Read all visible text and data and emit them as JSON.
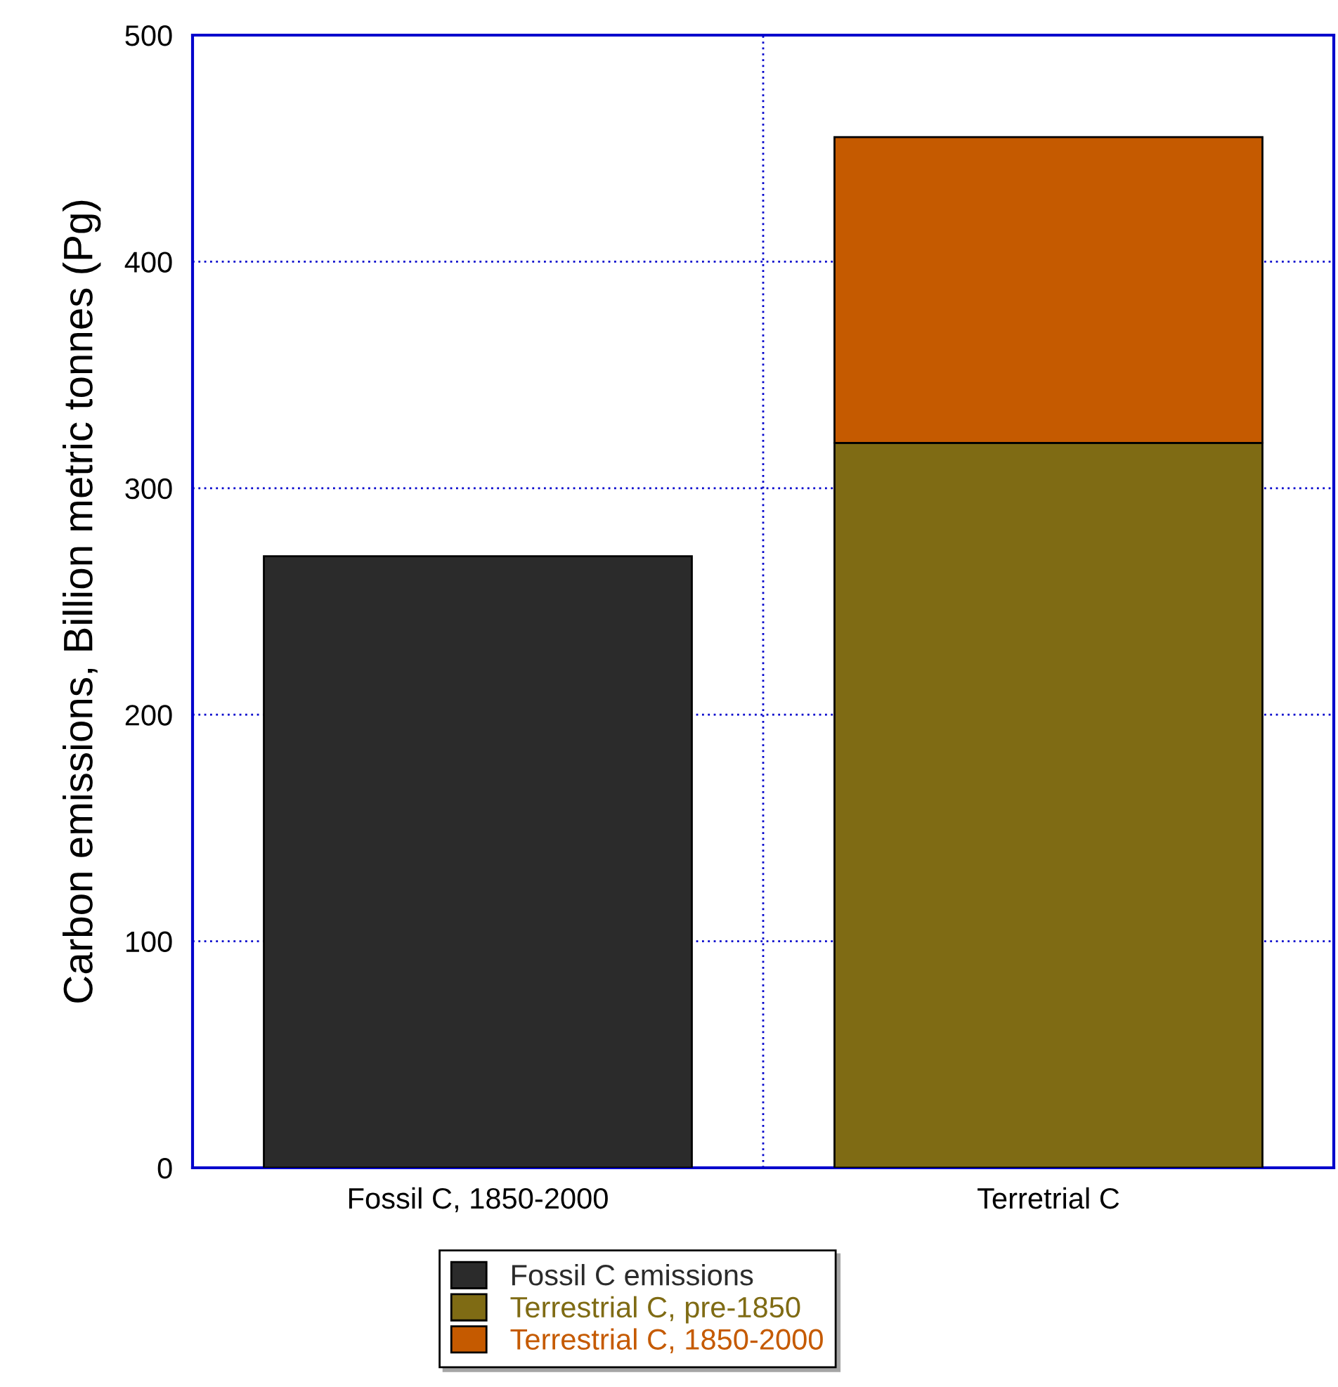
{
  "chart_data": {
    "type": "bar",
    "stacked": true,
    "ylabel": "Carbon emissions, Billion metric tonnes (Pg)",
    "categories": [
      "Fossil C, 1850-2000",
      "Terretrial C"
    ],
    "series": [
      {
        "name": "Fossil C emissions",
        "color": "#2b2b2b",
        "values": [
          270,
          null
        ]
      },
      {
        "name": "Terrestrial C, pre-1850",
        "color": "#7f6b14",
        "values": [
          null,
          320
        ]
      },
      {
        "name": "Terrestrial C, 1850-2000",
        "color": "#c55a00",
        "values": [
          null,
          135
        ]
      }
    ],
    "ylim": [
      0,
      500
    ],
    "yticks": [
      0,
      100,
      200,
      300,
      400,
      500
    ],
    "grid": true,
    "legend": "bottom"
  }
}
